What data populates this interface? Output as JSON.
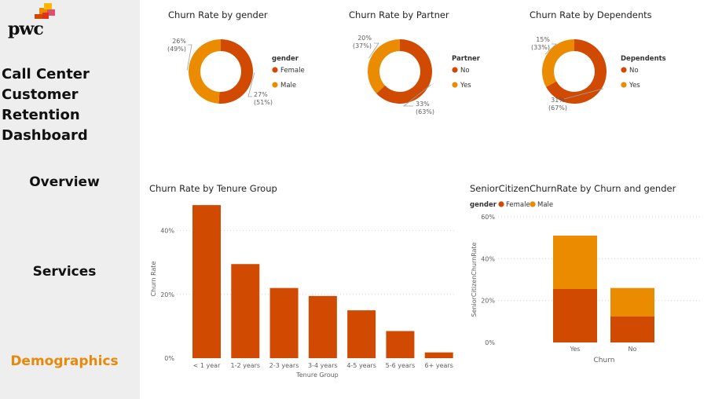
{
  "logo": {
    "text": "pwc"
  },
  "sidebar": {
    "title_lines": [
      "Call Center",
      "Customer",
      "Retention",
      "Dashboard"
    ],
    "nav": [
      {
        "label": "Overview",
        "active": false
      },
      {
        "label": "Services",
        "active": false
      },
      {
        "label": "Demographics",
        "active": true
      }
    ]
  },
  "colors": {
    "primary": "#d04a02",
    "secondary": "#eb8c00",
    "active_nav": "#e8890c",
    "sidebar_bg": "#eeeeee"
  },
  "chart_data": [
    {
      "type": "pie",
      "variant": "donut",
      "title": "Churn Rate by gender",
      "legend_title": "gender",
      "legend_position": "right",
      "slices": [
        {
          "name": "Female",
          "value": "27%",
          "pct": "(51%)",
          "share": 51,
          "color": "#d04a02"
        },
        {
          "name": "Male",
          "value": "26%",
          "pct": "(49%)",
          "share": 49,
          "color": "#eb8c00"
        }
      ]
    },
    {
      "type": "pie",
      "variant": "donut",
      "title": "Churn Rate by Partner",
      "legend_title": "Partner",
      "legend_position": "right",
      "slices": [
        {
          "name": "No",
          "value": "33%",
          "pct": "(63%)",
          "share": 63,
          "color": "#d04a02"
        },
        {
          "name": "Yes",
          "value": "20%",
          "pct": "(37%)",
          "share": 37,
          "color": "#eb8c00"
        }
      ]
    },
    {
      "type": "pie",
      "variant": "donut",
      "title": "Churn Rate by Dependents",
      "legend_title": "Dependents",
      "legend_position": "right",
      "slices": [
        {
          "name": "No",
          "value": "31%",
          "pct": "(67%)",
          "share": 67,
          "color": "#d04a02"
        },
        {
          "name": "Yes",
          "value": "15%",
          "pct": "(33%)",
          "share": 33,
          "color": "#eb8c00"
        }
      ]
    },
    {
      "type": "bar",
      "title": "Churn Rate by Tenure Group",
      "xlabel": "Tenure Group",
      "ylabel": "Churn Rate",
      "categories": [
        "< 1 year",
        "1-2 years",
        "2-3 years",
        "3-4 years",
        "4-5 years",
        "5-6 years",
        "6+ years"
      ],
      "values": [
        48,
        29.5,
        22,
        19.5,
        15,
        8.5,
        1.8
      ],
      "yticks": [
        0,
        20,
        40
      ],
      "ytick_labels": [
        "0%",
        "20%",
        "40%"
      ],
      "ylim": [
        0,
        50
      ],
      "grid": true,
      "color": "#d04a02"
    },
    {
      "type": "bar",
      "stacked": true,
      "title": "SeniorCitizenChurnRate by Churn and gender",
      "xlabel": "Churn",
      "ylabel": "SeniorCitizenChurnRate",
      "legend_title": "gender",
      "legend_position": "top-left",
      "categories": [
        "Yes",
        "No"
      ],
      "series": [
        {
          "name": "Female",
          "values": [
            25.5,
            12.5
          ],
          "color": "#d04a02"
        },
        {
          "name": "Male",
          "values": [
            25.5,
            13.5
          ],
          "color": "#eb8c00"
        }
      ],
      "yticks": [
        0,
        20,
        40,
        60
      ],
      "ytick_labels": [
        "0%",
        "20%",
        "40%",
        "60%"
      ],
      "ylim": [
        0,
        60
      ],
      "grid": true
    }
  ]
}
